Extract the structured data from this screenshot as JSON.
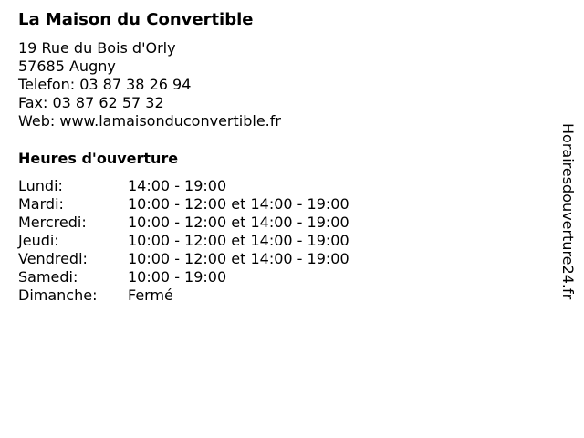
{
  "business": {
    "name": "La Maison du Convertible",
    "address_line1": "19 Rue du Bois d'Orly",
    "address_line2": "57685 Augny",
    "phone": "Telefon: 03 87 38 26 94",
    "fax": "Fax: 03 87 62 57 32",
    "web": "Web: www.lamaisonduconvertible.fr"
  },
  "hours": {
    "title": "Heures d'ouverture",
    "rows": [
      {
        "day": "Lundi:",
        "time": "14:00 - 19:00"
      },
      {
        "day": "Mardi:",
        "time": "10:00 - 12:00 et 14:00 - 19:00"
      },
      {
        "day": "Mercredi:",
        "time": "10:00 - 12:00 et 14:00 - 19:00"
      },
      {
        "day": "Jeudi:",
        "time": "10:00 - 12:00 et 14:00 - 19:00"
      },
      {
        "day": "Vendredi:",
        "time": "10:00 - 12:00 et 14:00 - 19:00"
      },
      {
        "day": "Samedi:",
        "time": "10:00 - 19:00"
      },
      {
        "day": "Dimanche:",
        "time": "Fermé"
      }
    ]
  },
  "watermark": "Horairesdouverture24.fr"
}
